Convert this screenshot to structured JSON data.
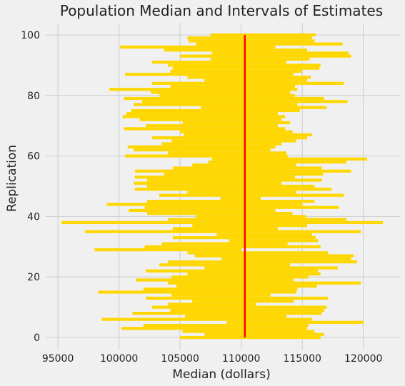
{
  "colors": {
    "background": "#f0f0f0",
    "grid": "#cbcbcb",
    "interval": "#ffd700",
    "median_line": "#ff0000",
    "text": "#222222"
  },
  "chart_data": {
    "type": "interval",
    "title": "Population Median and Intervals of Estimates",
    "xlabel": "Median (dollars)",
    "ylabel": "Replication",
    "xlim": [
      94000,
      123000
    ],
    "ylim": [
      -4,
      104
    ],
    "xticks": [
      95000,
      100000,
      105000,
      110000,
      115000,
      120000
    ],
    "yticks": [
      0,
      20,
      40,
      60,
      80,
      100
    ],
    "grid": true,
    "population_median": 110300,
    "intervals": [
      [
        105000,
        116500
      ],
      [
        107000,
        116800
      ],
      [
        105200,
        116000
      ],
      [
        100200,
        115400
      ],
      [
        102000,
        115500
      ],
      [
        108800,
        120000
      ],
      [
        98600,
        115800
      ],
      [
        105400,
        113700
      ],
      [
        101100,
        116600
      ],
      [
        104200,
        116800
      ],
      [
        102700,
        117000
      ],
      [
        104000,
        111200
      ],
      [
        106000,
        114300
      ],
      [
        102200,
        117100
      ],
      [
        104300,
        112400
      ],
      [
        98300,
        114500
      ],
      [
        102000,
        114600
      ],
      [
        104700,
        116200
      ],
      [
        104000,
        119800
      ],
      [
        101400,
        114300
      ],
      [
        104300,
        115500
      ],
      [
        105600,
        116500
      ],
      [
        102200,
        116300
      ],
      [
        107000,
        117900
      ],
      [
        103300,
        114000
      ],
      [
        104000,
        119500
      ],
      [
        108400,
        119000
      ],
      [
        106200,
        119200
      ],
      [
        105600,
        117100
      ],
      [
        98000,
        110000
      ],
      [
        102100,
        116500
      ],
      [
        103500,
        113800
      ],
      [
        109000,
        116300
      ],
      [
        104400,
        116100
      ],
      [
        108000,
        115800
      ],
      [
        97200,
        119800
      ],
      [
        104400,
        113000
      ],
      [
        106000,
        115400
      ],
      [
        95300,
        121600
      ],
      [
        104000,
        118600
      ],
      [
        106300,
        115300
      ],
      [
        102300,
        114200
      ],
      [
        100800,
        112800
      ],
      [
        102100,
        118000
      ],
      [
        99000,
        115000
      ],
      [
        102300,
        116000
      ],
      [
        108300,
        111600
      ],
      [
        103300,
        118400
      ],
      [
        105600,
        114500
      ],
      [
        101300,
        117400
      ],
      [
        102300,
        116000
      ],
      [
        101200,
        113300
      ],
      [
        102300,
        116600
      ],
      [
        101300,
        114400
      ],
      [
        103700,
        116700
      ],
      [
        101300,
        119000
      ],
      [
        104400,
        116600
      ],
      [
        106000,
        114500
      ],
      [
        107300,
        118600
      ],
      [
        107600,
        120300
      ],
      [
        100500,
        113800
      ],
      [
        104000,
        113700
      ],
      [
        101200,
        112400
      ],
      [
        100700,
        112800
      ],
      [
        103500,
        113300
      ],
      [
        104300,
        114500
      ],
      [
        102700,
        115400
      ],
      [
        105300,
        115800
      ],
      [
        105000,
        114200
      ],
      [
        100400,
        113600
      ],
      [
        102200,
        113000
      ],
      [
        105200,
        114000
      ],
      [
        101700,
        113300
      ],
      [
        100300,
        113600
      ],
      [
        100600,
        113000
      ],
      [
        101000,
        114800
      ],
      [
        106700,
        117000
      ],
      [
        101200,
        114600
      ],
      [
        101900,
        118700
      ],
      [
        100400,
        116800
      ],
      [
        103300,
        114400
      ],
      [
        102600,
        114000
      ],
      [
        99200,
        114600
      ],
      [
        104200,
        114400
      ],
      [
        102700,
        118400
      ],
      [
        107000,
        115400
      ],
      [
        105600,
        115700
      ],
      [
        100500,
        114300
      ],
      [
        104200,
        115000
      ],
      [
        104400,
        116400
      ],
      [
        104000,
        116500
      ],
      [
        102700,
        113700
      ],
      [
        107500,
        115600
      ],
      [
        105000,
        119000
      ],
      [
        107600,
        118800
      ],
      [
        103700,
        115400
      ],
      [
        100100,
        112800
      ],
      [
        106300,
        118300
      ],
      [
        105700,
        116000
      ],
      [
        105600,
        115800
      ],
      [
        107500,
        116100
      ]
    ]
  }
}
